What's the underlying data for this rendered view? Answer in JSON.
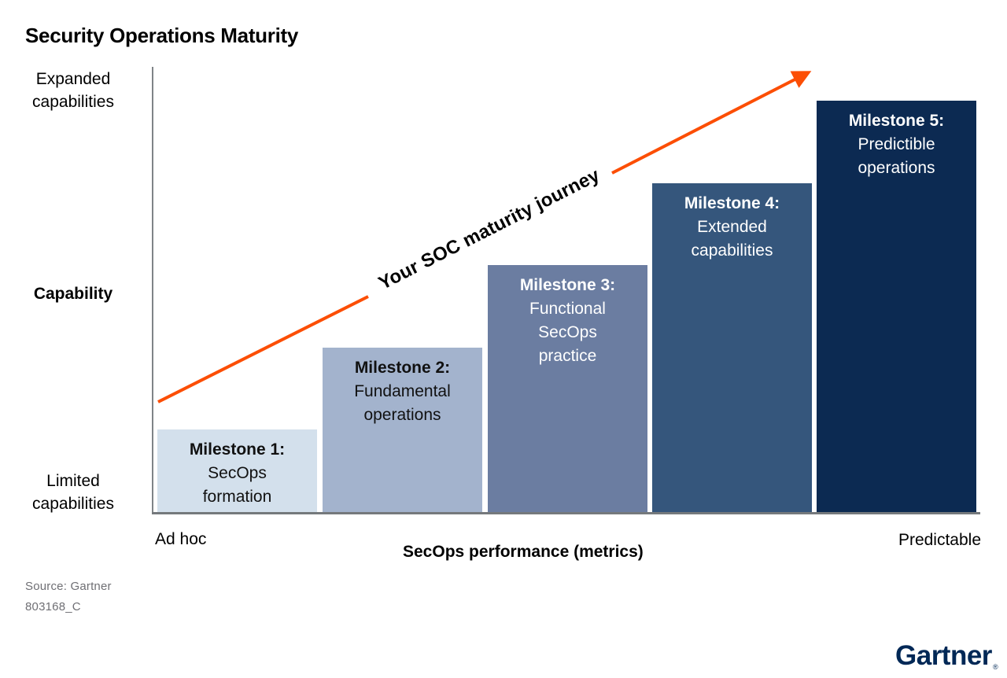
{
  "title": "Security Operations Maturity",
  "y_axis": {
    "top_label": "Expanded\ncapabilities",
    "mid_label": "Capability",
    "bottom_label": "Limited\ncapabilities"
  },
  "x_axis": {
    "left_label": "Ad hoc",
    "center_label": "SecOps performance (metrics)",
    "right_label": "Predictable"
  },
  "journey_arrow": {
    "label": "Your SOC maturity journey",
    "color": "#fc4e05"
  },
  "bars": [
    {
      "name": "Milestone 1:",
      "description": "SecOps\nformation",
      "value": 1,
      "color": "#d3e0ec",
      "text_color": "#111111"
    },
    {
      "name": "Milestone 2:",
      "description": "Fundamental\noperations",
      "value": 2,
      "color": "#a3b3cd",
      "text_color": "#111111"
    },
    {
      "name": "Milestone 3:",
      "description": "Functional\nSecOps\npractice",
      "value": 3,
      "color": "#6b7da1",
      "text_color": "#ffffff"
    },
    {
      "name": "Milestone 4:",
      "description": "Extended\ncapabilities",
      "value": 4,
      "color": "#35567c",
      "text_color": "#ffffff"
    },
    {
      "name": "Milestone 5:",
      "description": "Predictible\noperations",
      "value": 5,
      "color": "#0c2a52",
      "text_color": "#ffffff"
    }
  ],
  "source": {
    "line1": "Source: Gartner",
    "line2": "803168_C"
  },
  "logo": {
    "text": "Gartner",
    "registered_mark": "®",
    "color": "#002856"
  },
  "chart_data": {
    "type": "bar",
    "title": "Security Operations Maturity",
    "categories": [
      "Milestone 1: SecOps formation",
      "Milestone 2: Fundamental operations",
      "Milestone 3: Functional SecOps practice",
      "Milestone 4: Extended capabilities",
      "Milestone 5: Predictible operations"
    ],
    "values": [
      1,
      2,
      3,
      4,
      5
    ],
    "xlabel": "SecOps performance (metrics)",
    "ylabel": "Capability",
    "x_axis_endpoint_labels": [
      "Ad hoc",
      "Predictable"
    ],
    "y_axis_endpoint_labels": [
      "Limited capabilities",
      "Expanded capabilities"
    ],
    "annotation": "Your SOC maturity journey",
    "annotation_arrow_color": "#fc4e05",
    "bar_colors": [
      "#d3e0ec",
      "#a3b3cd",
      "#6b7da1",
      "#35567c",
      "#0c2a52"
    ],
    "ylim": [
      0,
      5.5
    ],
    "grid": false,
    "legend": false
  }
}
